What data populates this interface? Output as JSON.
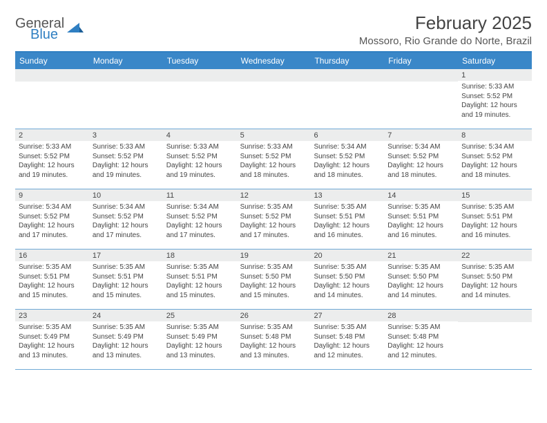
{
  "brand": {
    "general": "General",
    "blue": "Blue"
  },
  "title": "February 2025",
  "location": "Mossoro, Rio Grande do Norte, Brazil",
  "colors": {
    "header_bg": "#3a87c8",
    "rule": "#2f7fc2",
    "row_border": "#6fa9d6",
    "daynum_bg": "#eceded",
    "text": "#444444",
    "bg": "#ffffff"
  },
  "day_names": [
    "Sunday",
    "Monday",
    "Tuesday",
    "Wednesday",
    "Thursday",
    "Friday",
    "Saturday"
  ],
  "weeks": [
    [
      null,
      null,
      null,
      null,
      null,
      null,
      {
        "n": "1",
        "sr": "5:33 AM",
        "ss": "5:52 PM",
        "dl": "12 hours and 19 minutes."
      }
    ],
    [
      {
        "n": "2",
        "sr": "5:33 AM",
        "ss": "5:52 PM",
        "dl": "12 hours and 19 minutes."
      },
      {
        "n": "3",
        "sr": "5:33 AM",
        "ss": "5:52 PM",
        "dl": "12 hours and 19 minutes."
      },
      {
        "n": "4",
        "sr": "5:33 AM",
        "ss": "5:52 PM",
        "dl": "12 hours and 19 minutes."
      },
      {
        "n": "5",
        "sr": "5:33 AM",
        "ss": "5:52 PM",
        "dl": "12 hours and 18 minutes."
      },
      {
        "n": "6",
        "sr": "5:34 AM",
        "ss": "5:52 PM",
        "dl": "12 hours and 18 minutes."
      },
      {
        "n": "7",
        "sr": "5:34 AM",
        "ss": "5:52 PM",
        "dl": "12 hours and 18 minutes."
      },
      {
        "n": "8",
        "sr": "5:34 AM",
        "ss": "5:52 PM",
        "dl": "12 hours and 18 minutes."
      }
    ],
    [
      {
        "n": "9",
        "sr": "5:34 AM",
        "ss": "5:52 PM",
        "dl": "12 hours and 17 minutes."
      },
      {
        "n": "10",
        "sr": "5:34 AM",
        "ss": "5:52 PM",
        "dl": "12 hours and 17 minutes."
      },
      {
        "n": "11",
        "sr": "5:34 AM",
        "ss": "5:52 PM",
        "dl": "12 hours and 17 minutes."
      },
      {
        "n": "12",
        "sr": "5:35 AM",
        "ss": "5:52 PM",
        "dl": "12 hours and 17 minutes."
      },
      {
        "n": "13",
        "sr": "5:35 AM",
        "ss": "5:51 PM",
        "dl": "12 hours and 16 minutes."
      },
      {
        "n": "14",
        "sr": "5:35 AM",
        "ss": "5:51 PM",
        "dl": "12 hours and 16 minutes."
      },
      {
        "n": "15",
        "sr": "5:35 AM",
        "ss": "5:51 PM",
        "dl": "12 hours and 16 minutes."
      }
    ],
    [
      {
        "n": "16",
        "sr": "5:35 AM",
        "ss": "5:51 PM",
        "dl": "12 hours and 15 minutes."
      },
      {
        "n": "17",
        "sr": "5:35 AM",
        "ss": "5:51 PM",
        "dl": "12 hours and 15 minutes."
      },
      {
        "n": "18",
        "sr": "5:35 AM",
        "ss": "5:51 PM",
        "dl": "12 hours and 15 minutes."
      },
      {
        "n": "19",
        "sr": "5:35 AM",
        "ss": "5:50 PM",
        "dl": "12 hours and 15 minutes."
      },
      {
        "n": "20",
        "sr": "5:35 AM",
        "ss": "5:50 PM",
        "dl": "12 hours and 14 minutes."
      },
      {
        "n": "21",
        "sr": "5:35 AM",
        "ss": "5:50 PM",
        "dl": "12 hours and 14 minutes."
      },
      {
        "n": "22",
        "sr": "5:35 AM",
        "ss": "5:50 PM",
        "dl": "12 hours and 14 minutes."
      }
    ],
    [
      {
        "n": "23",
        "sr": "5:35 AM",
        "ss": "5:49 PM",
        "dl": "12 hours and 13 minutes."
      },
      {
        "n": "24",
        "sr": "5:35 AM",
        "ss": "5:49 PM",
        "dl": "12 hours and 13 minutes."
      },
      {
        "n": "25",
        "sr": "5:35 AM",
        "ss": "5:49 PM",
        "dl": "12 hours and 13 minutes."
      },
      {
        "n": "26",
        "sr": "5:35 AM",
        "ss": "5:48 PM",
        "dl": "12 hours and 13 minutes."
      },
      {
        "n": "27",
        "sr": "5:35 AM",
        "ss": "5:48 PM",
        "dl": "12 hours and 12 minutes."
      },
      {
        "n": "28",
        "sr": "5:35 AM",
        "ss": "5:48 PM",
        "dl": "12 hours and 12 minutes."
      },
      null
    ]
  ],
  "labels": {
    "sunrise": "Sunrise:",
    "sunset": "Sunset:",
    "daylight": "Daylight:"
  }
}
